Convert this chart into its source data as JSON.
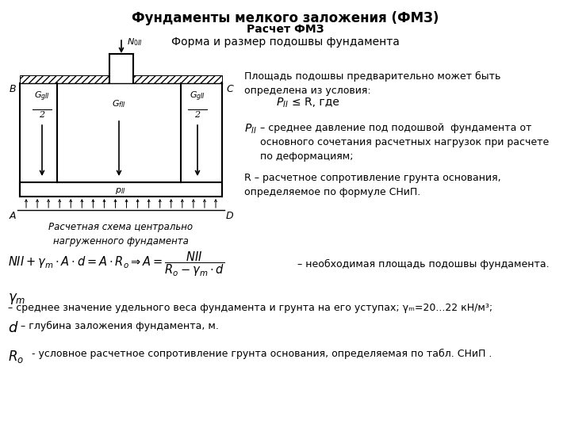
{
  "title1": "Фундаменты мелкого заложения (ФМЗ)",
  "title2": "Расчет ФМЗ",
  "title3": "Форма и размер подошвы фундамента",
  "caption": "Расчетная схема центрально\nнагруженного фундамента",
  "right_text1": "Площадь подошвы предварительно может быть\nопределена из условия:",
  "right_text3": "PИИ – среднее давление под подошвой  фундамента от\nосновного сочетания расчетных нагрузок при расчете\nпо деформациям;",
  "right_text4": "R – расчетное сопротивление грунта основания,\nопределяемое по формуле СНиП.",
  "bottom_text1": " – среднее значение удельного веса фундамента и грунта на его уступах; γm=20...22 кН/м³;",
  "bottom_text2": " – глубина заложения фундамента, м.",
  "bottom_text3": " - условное расчетное сопротивление грунта основания, определяемая по табл. СНиП .",
  "bg_color": "#ffffff",
  "text_color": "#000000"
}
